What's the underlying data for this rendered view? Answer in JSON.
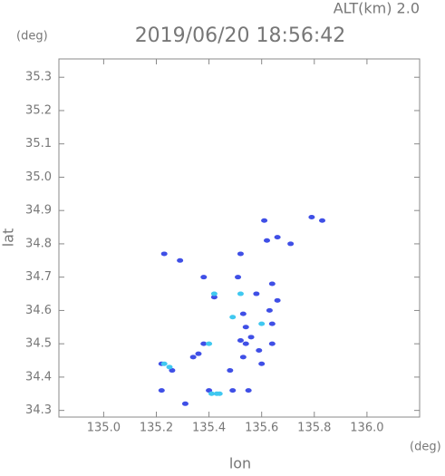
{
  "chart_data": {
    "type": "scatter",
    "header": "ALT(km) 2.0",
    "title": "2019/06/20 18:56:42",
    "x_unit": "(deg)",
    "y_unit": "(deg)",
    "xlabel": "lon",
    "ylabel": "lat",
    "xlim": [
      134.83,
      136.2
    ],
    "ylim": [
      34.28,
      35.355
    ],
    "xticks": [
      {
        "value": 135.0,
        "label": "135.0"
      },
      135.2,
      135.4,
      135.6,
      135.8,
      {
        "value": 136.0,
        "label": "136.0"
      }
    ],
    "yticks": [
      34.3,
      34.4,
      34.5,
      34.6,
      34.7,
      34.8,
      34.9,
      {
        "value": 35.0,
        "label": "35.0"
      },
      35.1,
      35.2,
      35.3
    ],
    "series": [
      {
        "color": "#3f4fe6",
        "x": [
          135.23,
          135.29,
          135.52,
          135.62,
          135.61,
          135.71,
          135.79,
          135.83,
          135.38,
          135.42,
          135.51,
          135.58,
          135.64,
          135.66,
          135.53,
          135.54,
          135.56,
          135.54,
          135.52,
          135.59,
          135.64,
          135.53,
          135.6,
          135.64,
          135.63,
          135.36,
          135.38,
          135.48,
          135.34,
          135.22,
          135.26,
          135.31,
          135.4,
          135.49,
          135.55,
          135.66,
          135.22
        ],
        "values": [
          34.77,
          34.75,
          34.77,
          34.81,
          34.87,
          34.8,
          34.88,
          34.87,
          34.7,
          34.64,
          34.7,
          34.65,
          34.68,
          34.63,
          34.59,
          34.55,
          34.52,
          34.5,
          34.51,
          34.48,
          34.5,
          34.46,
          34.44,
          34.56,
          34.6,
          34.47,
          34.5,
          34.42,
          34.46,
          34.44,
          34.42,
          34.32,
          34.36,
          34.36,
          34.36,
          34.82,
          34.36
        ]
      },
      {
        "color": "#40c8f0",
        "x": [
          135.23,
          135.25,
          135.4,
          135.41,
          135.44,
          135.43,
          135.52,
          135.49,
          135.6,
          135.42
        ],
        "values": [
          34.44,
          34.43,
          34.5,
          34.35,
          34.35,
          34.35,
          34.65,
          34.58,
          34.56,
          34.65
        ]
      }
    ]
  }
}
